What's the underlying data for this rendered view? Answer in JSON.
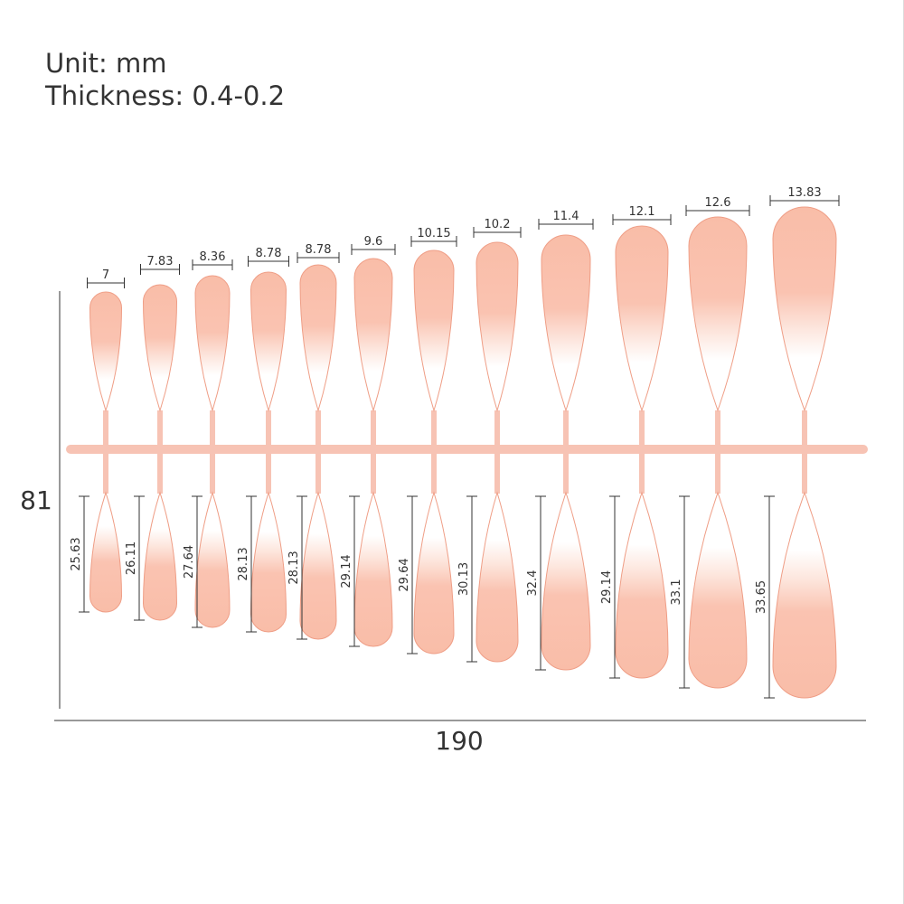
{
  "header": {
    "unit": "Unit: mm",
    "thickness": "Thickness: 0.4-0.2"
  },
  "dimensions": {
    "total_height": "81",
    "total_width": "190"
  },
  "colors": {
    "nail_fill": "#f9bda8",
    "nail_outline": "#ef9e86",
    "runner": "#f7c3b4",
    "dimension_line": "#333333"
  },
  "nails": [
    {
      "width": "7",
      "length": "25.63"
    },
    {
      "width": "7.83",
      "length": "26.11"
    },
    {
      "width": "8.36",
      "length": "27.64"
    },
    {
      "width": "8.78",
      "length": "28.13"
    },
    {
      "width": "8.78",
      "length": "28.13"
    },
    {
      "width": "9.6",
      "length": "29.14"
    },
    {
      "width": "10.15",
      "length": "29.64"
    },
    {
      "width": "10.2",
      "length": "30.13"
    },
    {
      "width": "11.4",
      "length": "32.4"
    },
    {
      "width": "12.1",
      "length": "29.14"
    },
    {
      "width": "12.6",
      "length": "33.1"
    },
    {
      "width": "13.83",
      "length": "33.65"
    }
  ]
}
